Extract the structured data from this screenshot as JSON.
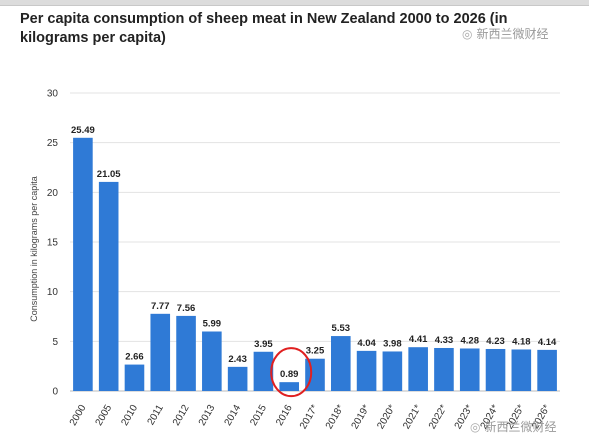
{
  "title": "Per capita consumption of sheep meat in New Zealand 2000 to 2026 (in kilograms per capita)",
  "watermark": "新西兰微财经",
  "watermark_icon": "wechat-icon",
  "chart_data": {
    "type": "bar",
    "title": "Per capita consumption of sheep meat in New Zealand 2000 to 2026 (in kilograms per capita)",
    "xlabel": "",
    "ylabel": "Consumption in kilograms per capita",
    "ylim": [
      0,
      30
    ],
    "yticks": [
      0,
      5,
      10,
      15,
      20,
      25,
      30
    ],
    "grid": true,
    "bar_color": "#2f7ad6",
    "highlight_color": "#e02020",
    "highlight_category": "2016",
    "categories": [
      "2000",
      "2005",
      "2010",
      "2011",
      "2012",
      "2013",
      "2014",
      "2015",
      "2016",
      "2017*",
      "2018*",
      "2019*",
      "2020*",
      "2021*",
      "2022*",
      "2023*",
      "2024*",
      "2025*",
      "2026*"
    ],
    "values": [
      25.49,
      21.05,
      2.66,
      7.77,
      7.56,
      5.99,
      2.43,
      3.95,
      0.89,
      3.25,
      5.53,
      4.04,
      3.98,
      4.41,
      4.33,
      4.28,
      4.23,
      4.18,
      4.14
    ],
    "labels": [
      "25.49",
      "21.05",
      "2.66",
      "7.77",
      "7.56",
      "5.99",
      "2.43",
      "3.95",
      "0.89",
      "3.25",
      "5.53",
      "4.04",
      "3.98",
      "4.41",
      "4.33",
      "4.28",
      "4.23",
      "4.18",
      "4.14"
    ]
  }
}
